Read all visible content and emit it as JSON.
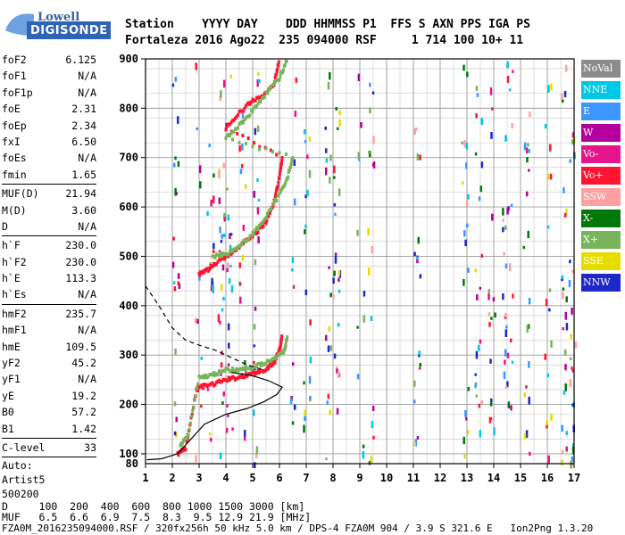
{
  "logo": {
    "top": "Lowell",
    "main": "DIGISONDE"
  },
  "header": {
    "labels": "Station    YYYY DAY    DDD HHMMSS P1  FFS S AXN PPS IGA PS",
    "values": "Fortaleza 2016 Ago22  235 094000 RSF     1 714 100 10+ 11"
  },
  "params": {
    "group1": [
      {
        "name": "foF2",
        "value": "6.125"
      },
      {
        "name": "foF1",
        "value": "N/A"
      },
      {
        "name": "foF1p",
        "value": "N/A"
      },
      {
        "name": "foE",
        "value": "2.31"
      },
      {
        "name": "foEp",
        "value": "2.34"
      },
      {
        "name": "fxI",
        "value": "6.50"
      },
      {
        "name": "foEs",
        "value": "N/A"
      },
      {
        "name": "fmin",
        "value": "1.65"
      }
    ],
    "group2": [
      {
        "name": "MUF(D)",
        "value": "21.94"
      },
      {
        "name": "M(D)",
        "value": "3.60"
      },
      {
        "name": "D",
        "value": "N/A"
      }
    ],
    "group3": [
      {
        "name": "h`F",
        "value": "230.0"
      },
      {
        "name": "h`F2",
        "value": "230.0"
      },
      {
        "name": "h`E",
        "value": "113.3"
      },
      {
        "name": "h`Es",
        "value": "N/A"
      }
    ],
    "group4": [
      {
        "name": "hmF2",
        "value": "235.7"
      },
      {
        "name": "hmF1",
        "value": "N/A"
      },
      {
        "name": "hmE",
        "value": "109.5"
      },
      {
        "name": "yF2",
        "value": "45.2"
      },
      {
        "name": "yF1",
        "value": "N/A"
      },
      {
        "name": "yE",
        "value": "19.2"
      },
      {
        "name": "B0",
        "value": "57.2"
      },
      {
        "name": "B1",
        "value": "1.42"
      }
    ],
    "group5": [
      {
        "name": "C-level",
        "value": "33"
      }
    ],
    "auto": [
      "Auto:",
      "Artist5",
      "500200"
    ]
  },
  "legend": [
    {
      "label": "NoVal",
      "color": "#8c8c8c"
    },
    {
      "label": "NNE",
      "color": "#00c8e6"
    },
    {
      "label": "E",
      "color": "#3c96ff"
    },
    {
      "label": "W",
      "color": "#b4009c"
    },
    {
      "label": "Vo-",
      "color": "#e6148c"
    },
    {
      "label": "Vo+",
      "color": "#ff1432"
    },
    {
      "label": "SSW",
      "color": "#ffa0a0"
    },
    {
      "label": "X-",
      "color": "#00780a"
    },
    {
      "label": "X+",
      "color": "#78b45a"
    },
    {
      "label": "SSE",
      "color": "#e6dc00"
    },
    {
      "label": "NNW",
      "color": "#1e28c8"
    }
  ],
  "bottom": {
    "d_row": "D     100  200  400  600  800 1000 1500 3000 [km]",
    "muf_row": "MUF   6.5  6.6  6.9  7.5  8.3  9.5 12.9 21.9 [MHz]",
    "footer": "FZA0M_2016235094000.RSF / 320fx256h 50 kHz 5.0 km / DPS-4 FZA0M 904 / 3.9 S 321.6 E   Ion2Png 1.3.20"
  },
  "chart_data": {
    "type": "scatter",
    "xlim": [
      1,
      17
    ],
    "ylim": [
      80,
      900
    ],
    "x_ticks": [
      1,
      2,
      3,
      4,
      5,
      6,
      7,
      8,
      9,
      10,
      11,
      12,
      13,
      14,
      15,
      16,
      17
    ],
    "y_ticks": [
      100,
      200,
      300,
      400,
      500,
      600,
      700,
      800,
      900
    ],
    "y_minor_step": 50,
    "x_minor_step": 0.5,
    "series": [
      {
        "name": "Vo+",
        "color": "#ff1432",
        "points": [
          [
            2.2,
            100
          ],
          [
            2.5,
            110
          ],
          [
            2.9,
            230
          ],
          [
            3.0,
            235
          ],
          [
            3.5,
            240
          ],
          [
            4.0,
            250
          ],
          [
            4.5,
            255
          ],
          [
            5.0,
            262
          ],
          [
            5.5,
            270
          ],
          [
            5.8,
            285
          ],
          [
            6.0,
            310
          ],
          [
            6.1,
            340
          ],
          [
            3.0,
            465
          ],
          [
            3.2,
            470
          ],
          [
            3.5,
            480
          ],
          [
            4.0,
            500
          ],
          [
            4.5,
            520
          ],
          [
            5.0,
            540
          ],
          [
            5.5,
            570
          ],
          [
            5.8,
            610
          ],
          [
            6.0,
            660
          ],
          [
            6.1,
            700
          ],
          [
            4.0,
            760
          ],
          [
            4.5,
            790
          ],
          [
            5.0,
            815
          ],
          [
            5.5,
            830
          ],
          [
            5.8,
            850
          ],
          [
            6.0,
            900
          ]
        ]
      },
      {
        "name": "X+",
        "color": "#78b45a",
        "points": [
          [
            2.3,
            115
          ],
          [
            2.6,
            140
          ],
          [
            3.0,
            255
          ],
          [
            3.5,
            260
          ],
          [
            4.0,
            270
          ],
          [
            4.5,
            270
          ],
          [
            5.0,
            275
          ],
          [
            5.5,
            285
          ],
          [
            6.0,
            300
          ],
          [
            6.2,
            310
          ],
          [
            6.3,
            340
          ],
          [
            3.5,
            500
          ],
          [
            4.0,
            505
          ],
          [
            4.5,
            520
          ],
          [
            5.0,
            545
          ],
          [
            5.5,
            580
          ],
          [
            6.0,
            625
          ],
          [
            6.3,
            660
          ],
          [
            6.5,
            700
          ],
          [
            4.0,
            740
          ],
          [
            4.5,
            765
          ],
          [
            5.0,
            795
          ],
          [
            5.5,
            830
          ],
          [
            6.0,
            860
          ],
          [
            6.3,
            900
          ]
        ]
      }
    ],
    "curves": [
      {
        "name": "profile",
        "style": "solid",
        "points": [
          [
            1.05,
            88
          ],
          [
            1.6,
            90
          ],
          [
            2.2,
            100
          ],
          [
            2.7,
            130
          ],
          [
            3.2,
            160
          ],
          [
            4.0,
            180
          ],
          [
            4.8,
            192
          ],
          [
            5.4,
            205
          ],
          [
            5.9,
            220
          ],
          [
            6.1,
            235
          ],
          [
            5.6,
            248
          ],
          [
            5.0,
            258
          ],
          [
            4.2,
            265
          ]
        ]
      },
      {
        "name": "virtual-height",
        "style": "dashed",
        "points": [
          [
            1.0,
            440
          ],
          [
            1.5,
            400
          ],
          [
            2.0,
            355
          ],
          [
            2.5,
            330
          ],
          [
            3.0,
            320
          ],
          [
            3.6,
            310
          ],
          [
            4.2,
            295
          ],
          [
            4.8,
            280
          ],
          [
            5.4,
            270
          ]
        ]
      }
    ]
  }
}
